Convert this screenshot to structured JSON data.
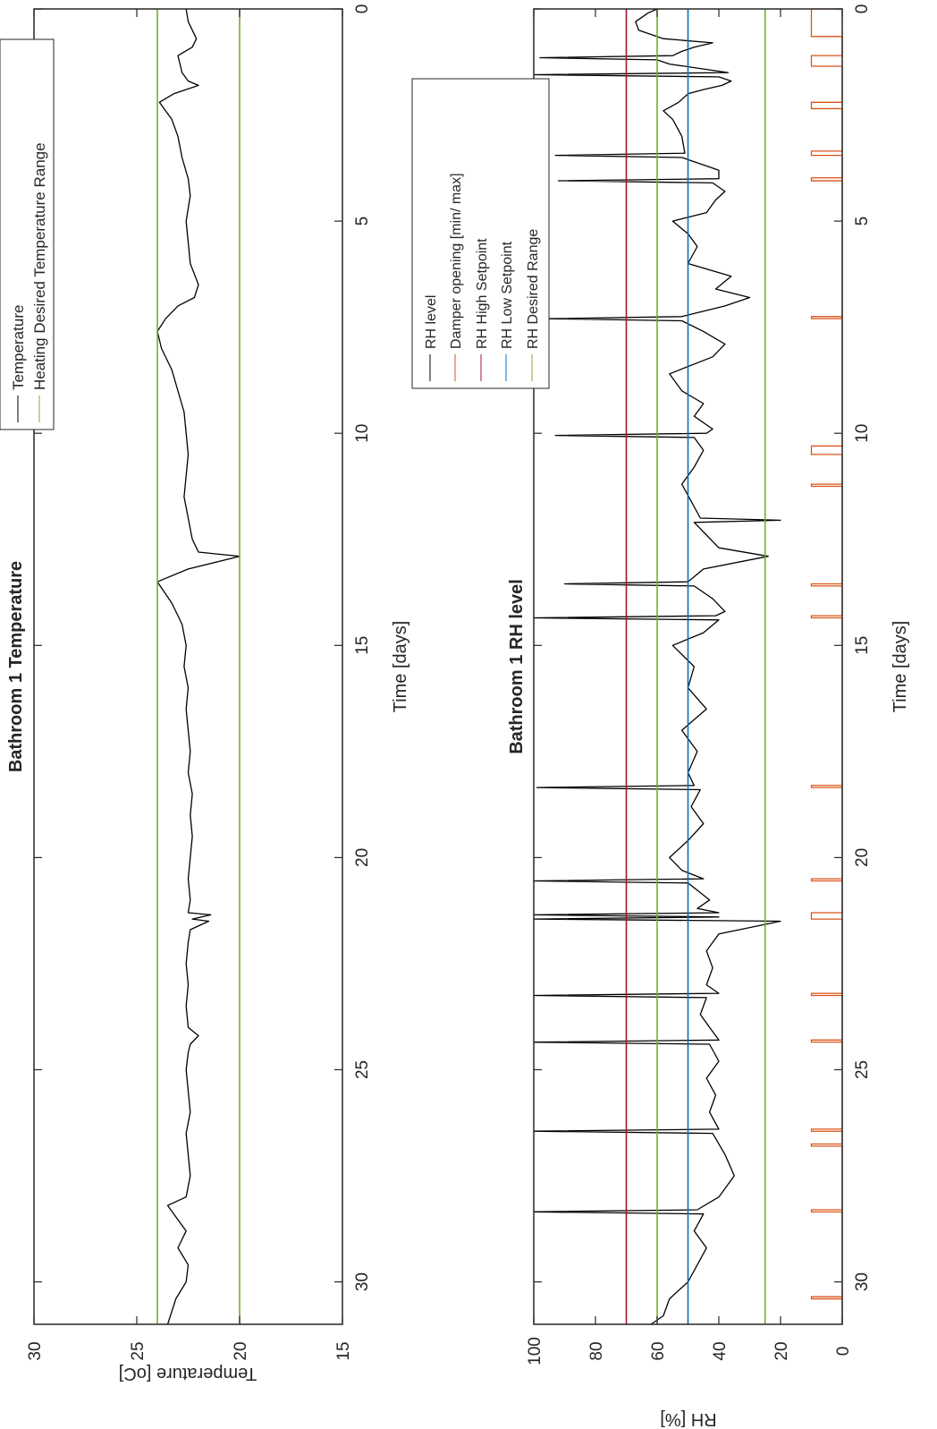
{
  "chart_data": [
    {
      "type": "line",
      "title": "Bathroom 1 Temperature",
      "xlabel": "Time [days]",
      "ylabel": "Temperature [oC]",
      "xlim": [
        0,
        31
      ],
      "ylim": [
        15,
        30
      ],
      "x_ticks": [
        "0",
        "5",
        "10",
        "15",
        "20",
        "25",
        "30"
      ],
      "y_ticks": [
        "15",
        "20",
        "25",
        "30"
      ],
      "grid": false,
      "legend_position": "top-right",
      "series": [
        {
          "name": "Temperature",
          "color": "#000000",
          "x": [
            0,
            0.3,
            0.5,
            0.7,
            0.9,
            1.1,
            1.3,
            1.5,
            1.7,
            1.8,
            1.85,
            2.0,
            2.2,
            2.6,
            3.0,
            3.5,
            4.0,
            4.4,
            5.0,
            5.5,
            6.0,
            6.5,
            6.8,
            7.0,
            7.3,
            7.6,
            8.0,
            8.5,
            9.0,
            9.5,
            10.0,
            10.5,
            11.0,
            11.5,
            12.0,
            12.5,
            12.8,
            12.9,
            13.2,
            13.5,
            14.0,
            14.5,
            15.0,
            15.5,
            16.0,
            16.5,
            17.0,
            17.5,
            18.0,
            18.5,
            19.0,
            19.5,
            20.0,
            20.5,
            21.0,
            21.3,
            21.35,
            21.45,
            21.5,
            21.7,
            22.0,
            22.5,
            23.0,
            23.5,
            24.0,
            24.2,
            24.4,
            24.6,
            25.0,
            25.5,
            26.0,
            26.5,
            27.0,
            27.5,
            28.0,
            28.2,
            28.4,
            28.8,
            29.2,
            29.6,
            30.0,
            30.4,
            30.7,
            31.0
          ],
          "y": [
            22.6,
            22.5,
            22.3,
            22.1,
            22.3,
            23.0,
            22.9,
            22.8,
            22.5,
            22.0,
            22.3,
            23.2,
            23.9,
            23.3,
            23.0,
            22.8,
            22.5,
            22.4,
            22.6,
            22.5,
            22.4,
            22.0,
            22.2,
            23.0,
            23.6,
            24.0,
            23.8,
            23.3,
            23.0,
            22.7,
            22.6,
            22.5,
            22.6,
            22.7,
            22.5,
            22.3,
            22.0,
            20.0,
            22.5,
            24.0,
            23.3,
            22.8,
            22.6,
            22.7,
            22.5,
            22.6,
            22.5,
            22.4,
            22.5,
            22.3,
            22.4,
            22.3,
            22.4,
            22.5,
            22.4,
            22.5,
            21.4,
            22.3,
            21.5,
            22.4,
            22.5,
            22.6,
            22.5,
            22.6,
            22.5,
            22.0,
            22.4,
            22.5,
            22.6,
            22.5,
            22.4,
            22.6,
            22.5,
            22.4,
            22.6,
            23.5,
            23.2,
            22.6,
            23.0,
            22.5,
            22.6,
            23.1,
            23.3,
            23.5
          ]
        },
        {
          "name": "Heating Desired Temperature Range",
          "color": "#77ac30",
          "levels": [
            20,
            24
          ]
        }
      ]
    },
    {
      "type": "line",
      "title": "Bathroom 1 RH level",
      "xlabel": "Time [days]",
      "ylabel": "RH [%]",
      "xlim": [
        0,
        31
      ],
      "ylim": [
        0,
        100
      ],
      "x_ticks": [
        "0",
        "5",
        "10",
        "15",
        "20",
        "25",
        "30"
      ],
      "y_ticks": [
        "0",
        "20",
        "40",
        "60",
        "80",
        "100"
      ],
      "grid": false,
      "legend_position": "top-right",
      "series": [
        {
          "name": "RH level",
          "color": "#000000",
          "x": [
            0,
            0.1,
            0.3,
            0.5,
            0.7,
            0.8,
            0.9,
            1.0,
            1.1,
            1.15,
            1.2,
            1.3,
            1.5,
            1.55,
            1.6,
            1.7,
            1.8,
            1.9,
            2.0,
            2.2,
            2.4,
            2.6,
            3.0,
            3.4,
            3.45,
            3.5,
            3.8,
            4.0,
            4.05,
            4.1,
            4.3,
            4.5,
            4.8,
            5.0,
            5.3,
            5.6,
            6.0,
            6.3,
            6.6,
            6.8,
            7.0,
            7.25,
            7.3,
            7.35,
            7.6,
            7.9,
            8.2,
            8.6,
            9.0,
            9.3,
            9.6,
            9.9,
            10.0,
            10.05,
            10.1,
            10.4,
            10.8,
            11.2,
            11.6,
            12.0,
            12.05,
            12.1,
            12.4,
            12.7,
            12.9,
            13.2,
            13.5,
            13.55,
            13.6,
            13.9,
            14.2,
            14.3,
            14.35,
            14.4,
            14.7,
            15.0,
            15.5,
            16.0,
            16.5,
            17.0,
            17.5,
            18.0,
            18.3,
            18.35,
            18.4,
            18.8,
            19.2,
            19.6,
            20.0,
            20.3,
            20.5,
            20.55,
            20.6,
            21.0,
            21.2,
            21.3,
            21.35,
            21.4,
            21.45,
            21.5,
            21.8,
            22.2,
            22.6,
            23.0,
            23.2,
            23.25,
            23.3,
            23.7,
            24.0,
            24.3,
            24.35,
            24.4,
            24.8,
            25.2,
            25.6,
            26.0,
            26.4,
            26.45,
            26.5,
            27.0,
            27.5,
            28.0,
            28.3,
            28.35,
            28.4,
            28.8,
            29.2,
            29.6,
            30.0,
            30.4,
            30.8,
            31.0
          ],
          "y": [
            60,
            63,
            67,
            66,
            58,
            42,
            48,
            52,
            55,
            98,
            60,
            56,
            37,
            100,
            40,
            36,
            39,
            45,
            50,
            53,
            58,
            55,
            52,
            51,
            93,
            52,
            40,
            40,
            92,
            42,
            38,
            41,
            44,
            55,
            50,
            47,
            50,
            36,
            41,
            30,
            38,
            52,
            95,
            52,
            45,
            38,
            42,
            56,
            52,
            45,
            48,
            42,
            44,
            93,
            48,
            45,
            48,
            52,
            49,
            46,
            20,
            48,
            44,
            40,
            24,
            45,
            50,
            90,
            48,
            42,
            38,
            41,
            100,
            40,
            45,
            55,
            48,
            50,
            44,
            52,
            47,
            50,
            48,
            99,
            46,
            49,
            45,
            50,
            56,
            52,
            45,
            100,
            50,
            43,
            47,
            40,
            100,
            40,
            100,
            20,
            40,
            44,
            42,
            44,
            40,
            100,
            44,
            46,
            43,
            40,
            100,
            43,
            40,
            44,
            41,
            43,
            40,
            100,
            42,
            38,
            35,
            40,
            47,
            100,
            45,
            48,
            44,
            47,
            50,
            56,
            58,
            62
          ]
        },
        {
          "name": "Damper opening [min/ max]",
          "color": "#d95319",
          "pulses": [
            [
              0.0,
              0.65
            ],
            [
              1.1,
              1.35
            ],
            [
              2.2,
              2.35
            ],
            [
              3.35,
              3.45
            ],
            [
              3.98,
              4.05
            ],
            [
              7.25,
              7.3
            ],
            [
              10.3,
              10.5
            ],
            [
              11.2,
              11.25
            ],
            [
              13.55,
              13.6
            ],
            [
              14.3,
              14.35
            ],
            [
              18.3,
              18.35
            ],
            [
              20.5,
              20.55
            ],
            [
              21.3,
              21.45
            ],
            [
              23.2,
              23.25
            ],
            [
              24.3,
              24.35
            ],
            [
              26.4,
              26.45
            ],
            [
              26.75,
              26.8
            ],
            [
              28.3,
              28.35
            ],
            [
              30.35,
              30.4
            ]
          ]
        },
        {
          "name": "RH High Setpoint",
          "color": "#a2142f",
          "levels": [
            70
          ]
        },
        {
          "name": "RH Low Setpoint",
          "color": "#0072bd",
          "levels": [
            50
          ]
        },
        {
          "name": "RH Desired Range",
          "color": "#77ac30",
          "levels": [
            25,
            60
          ]
        }
      ]
    }
  ]
}
